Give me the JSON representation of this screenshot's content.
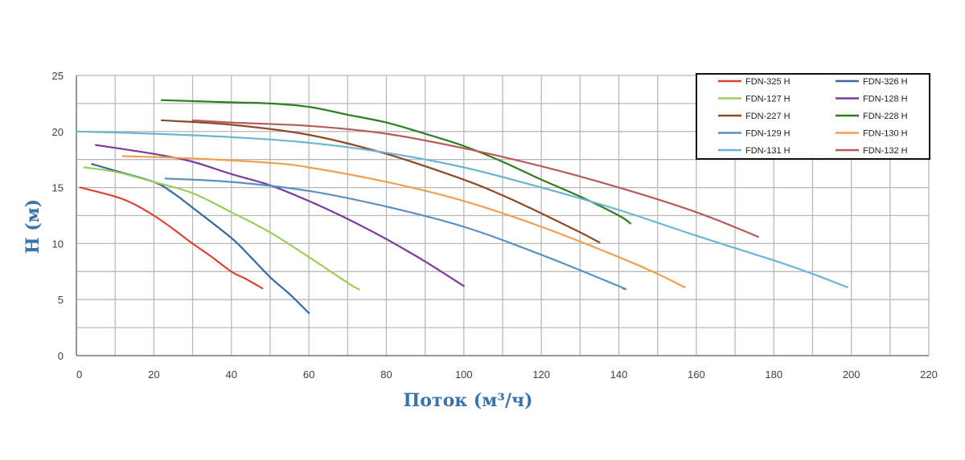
{
  "chart_data": {
    "type": "line",
    "xlabel": "Поток (м³/ч)",
    "ylabel": "H (м)",
    "xlim": [
      0,
      220
    ],
    "ylim": [
      0,
      25
    ],
    "x_ticks": [
      "0",
      "20",
      "40",
      "60",
      "80",
      "100",
      "120",
      "140",
      "160",
      "180",
      "200",
      "220"
    ],
    "y_ticks": [
      "0",
      "5",
      "10",
      "15",
      "20",
      "25"
    ],
    "grid": true,
    "legend_position": "top-right",
    "series": [
      {
        "name": "FDN-325 H",
        "color": "#d94434",
        "x": [
          1,
          10,
          15,
          20,
          25,
          30,
          35,
          40,
          44,
          48
        ],
        "y": [
          15,
          14.2,
          13.5,
          12.5,
          11.3,
          10,
          8.8,
          7.5,
          6.8,
          6
        ]
      },
      {
        "name": "FDN-326 H",
        "color": "#3a6a9a",
        "x": [
          4,
          10,
          20,
          25,
          30,
          40,
          45,
          50,
          55,
          60
        ],
        "y": [
          17.1,
          16.5,
          15.5,
          14.5,
          13.2,
          10.5,
          8.8,
          7,
          5.5,
          3.8
        ]
      },
      {
        "name": "FDN-127 H",
        "color": "#9ccc5a",
        "x": [
          2,
          10,
          20,
          30,
          40,
          50,
          60,
          70,
          73
        ],
        "y": [
          16.8,
          16.4,
          15.5,
          14.5,
          12.8,
          11,
          8.8,
          6.5,
          5.9
        ]
      },
      {
        "name": "FDN-128 H",
        "color": "#7d3a9c",
        "x": [
          5,
          20,
          30,
          40,
          50,
          60,
          70,
          80,
          90,
          100
        ],
        "y": [
          18.8,
          18,
          17.3,
          16.2,
          15.2,
          13.8,
          12.2,
          10.4,
          8.4,
          6.2
        ]
      },
      {
        "name": "FDN-227 H",
        "color": "#8a4a26",
        "x": [
          22,
          40,
          60,
          80,
          100,
          110,
          120,
          130,
          135
        ],
        "y": [
          21,
          20.6,
          19.7,
          18,
          15.7,
          14.3,
          12.7,
          11,
          10.1
        ]
      },
      {
        "name": "FDN-228 H",
        "color": "#2e7d22",
        "x": [
          22,
          40,
          50,
          60,
          70,
          80,
          90,
          100,
          110,
          120,
          130,
          140,
          143
        ],
        "y": [
          22.8,
          22.6,
          22.5,
          22.2,
          21.5,
          20.8,
          19.8,
          18.7,
          17.3,
          15.7,
          14.2,
          12.5,
          11.8
        ]
      },
      {
        "name": "FDN-129 H",
        "color": "#5b8fbf",
        "x": [
          23,
          40,
          60,
          80,
          100,
          120,
          140,
          141
        ],
        "y": [
          15.8,
          15.5,
          14.7,
          13.3,
          11.5,
          9,
          6.2,
          6
        ]
      },
      {
        "name": "FDN-130 H",
        "color": "#f0a050",
        "x": [
          12,
          30,
          50,
          60,
          80,
          100,
          120,
          140,
          150,
          157
        ],
        "y": [
          17.8,
          17.6,
          17.2,
          16.8,
          15.5,
          13.8,
          11.5,
          8.8,
          7.3,
          6.1
        ]
      },
      {
        "name": "FDN-131 H",
        "color": "#6cb4d4",
        "x": [
          0,
          20,
          40,
          60,
          80,
          100,
          120,
          140,
          160,
          180,
          190,
          199
        ],
        "y": [
          20,
          19.8,
          19.5,
          19,
          18.1,
          16.8,
          15,
          13,
          10.7,
          8.5,
          7.3,
          6.1
        ]
      },
      {
        "name": "FDN-132 H",
        "color": "#b85a5a",
        "x": [
          30,
          40,
          60,
          80,
          100,
          120,
          140,
          160,
          176
        ],
        "y": [
          21,
          20.8,
          20.5,
          19.8,
          18.5,
          16.9,
          15,
          12.8,
          10.6
        ]
      }
    ]
  }
}
